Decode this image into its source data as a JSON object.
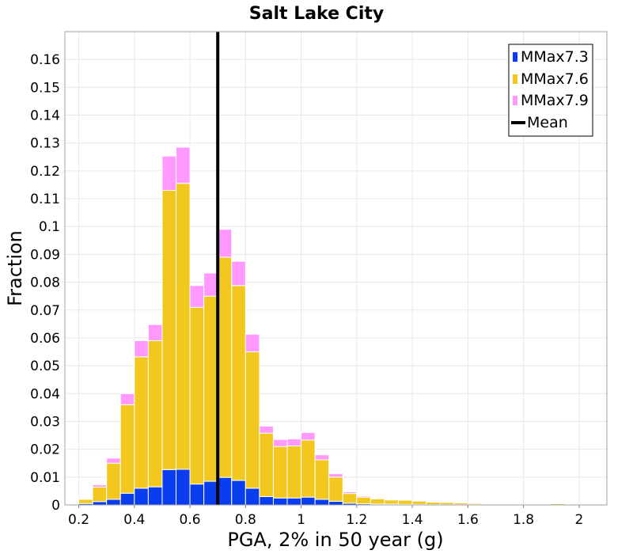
{
  "chart_data": {
    "type": "bar",
    "stacked": true,
    "title": "Salt Lake City",
    "xlabel": "PGA, 2% in 50 year (g)",
    "ylabel": "Fraction",
    "xlim": [
      0.15,
      2.1
    ],
    "ylim": [
      0,
      0.17
    ],
    "bin_width": 0.05,
    "grid": true,
    "legend_position": "top-right",
    "xticks": [
      0.2,
      0.4,
      0.6,
      0.8,
      1,
      1.2,
      1.4,
      1.6,
      1.8,
      2
    ],
    "xtick_labels": [
      "0.2",
      "0.4",
      "0.6",
      "0.8",
      "1",
      "1.2",
      "1.4",
      "1.6",
      "1.8",
      "2"
    ],
    "yticks": [
      0,
      0.01,
      0.02,
      0.03,
      0.04,
      0.05,
      0.06,
      0.07,
      0.08,
      0.09,
      0.1,
      0.11,
      0.12,
      0.13,
      0.14,
      0.15,
      0.16
    ],
    "ytick_labels": [
      "0",
      "0.01",
      "0.02",
      "0.03",
      "0.04",
      "0.05",
      "0.06",
      "0.07",
      "0.08",
      "0.09",
      "0.1",
      "0.11",
      "0.12",
      "0.13",
      "0.14",
      "0.15",
      "0.16"
    ],
    "bin_starts": [
      0.15,
      0.2,
      0.25,
      0.3,
      0.35,
      0.4,
      0.45,
      0.5,
      0.55,
      0.6,
      0.65,
      0.7,
      0.75,
      0.8,
      0.85,
      0.9,
      0.95,
      1.0,
      1.05,
      1.1,
      1.15,
      1.2,
      1.25,
      1.3,
      1.35,
      1.4,
      1.45,
      1.5,
      1.55,
      1.6,
      1.65,
      1.7,
      1.75,
      1.8,
      1.85,
      1.9,
      1.95,
      2.0,
      2.05
    ],
    "series": [
      {
        "name": "MMax7.3",
        "color": "#0a3cf0",
        "values": [
          0.0002,
          0.0005,
          0.0012,
          0.002,
          0.0042,
          0.006,
          0.0065,
          0.0127,
          0.0128,
          0.0075,
          0.0085,
          0.0099,
          0.0088,
          0.006,
          0.003,
          0.0025,
          0.0025,
          0.0028,
          0.002,
          0.0013,
          0.0006,
          0.0004,
          0.0003,
          0.0003,
          0.0002,
          0.0002,
          0.0001,
          0.0001,
          0.0001,
          0.0001,
          0.0,
          0.0,
          0.0,
          0.0,
          0.0,
          0.0,
          0.0,
          0.0,
          0.0
        ]
      },
      {
        "name": "MMax7.6",
        "color": "#f2c81f",
        "values": [
          0.0003,
          0.0015,
          0.0052,
          0.013,
          0.0318,
          0.0472,
          0.0525,
          0.1003,
          0.1027,
          0.0635,
          0.0665,
          0.0791,
          0.07,
          0.049,
          0.0228,
          0.0185,
          0.0187,
          0.0205,
          0.0142,
          0.0087,
          0.0035,
          0.0024,
          0.0019,
          0.0015,
          0.0015,
          0.0012,
          0.0009,
          0.0008,
          0.0006,
          0.0004,
          0.0003,
          0.0003,
          0.0002,
          0.0002,
          0.0001,
          0.0004,
          0.0001,
          0.0003,
          0.0001
        ]
      },
      {
        "name": "MMax7.9",
        "color": "#ff99ff",
        "values": [
          0.0,
          0.0,
          0.0008,
          0.0018,
          0.004,
          0.0058,
          0.0058,
          0.0123,
          0.013,
          0.0078,
          0.0083,
          0.01,
          0.0087,
          0.0063,
          0.0025,
          0.0025,
          0.0025,
          0.0027,
          0.0018,
          0.0012,
          0.0006,
          0.0004,
          0.0003,
          0.0002,
          0.0002,
          0.0002,
          0.0001,
          0.0001,
          0.0001,
          0.0,
          0.0,
          0.0,
          0.0,
          0.0,
          0.0,
          0.0,
          0.0,
          0.0,
          0.0
        ]
      }
    ],
    "mean": {
      "name": "Mean",
      "x": 0.7,
      "color": "#000000"
    }
  }
}
